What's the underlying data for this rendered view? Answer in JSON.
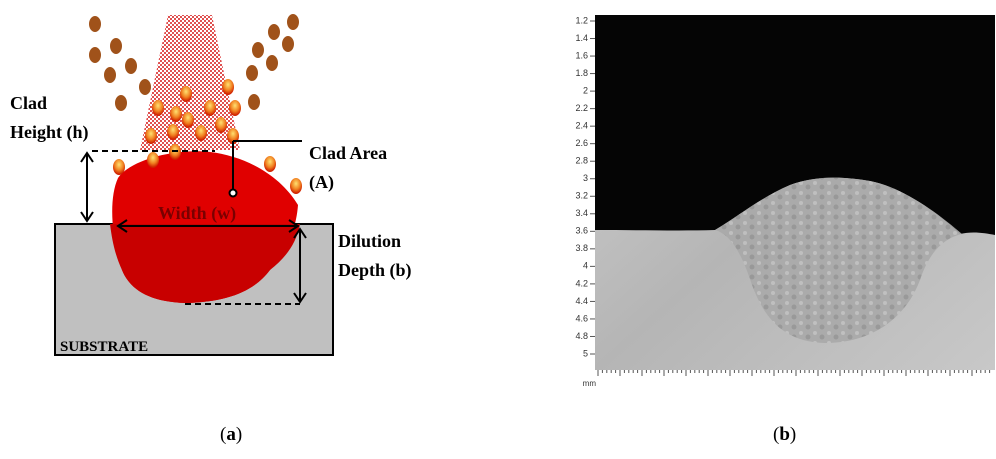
{
  "panel_a": {
    "clad_height": [
      "Clad",
      "Height (h)"
    ],
    "clad_area": [
      "Clad Area",
      "(A)"
    ],
    "width": "Width (w)",
    "dilution_depth": [
      "Dilution",
      "Depth (b)"
    ],
    "substrate": "SUBSTRATE",
    "caption": [
      "(",
      "a",
      ")"
    ]
  },
  "panel_b": {
    "yticks": [
      1.2,
      1.4,
      1.6,
      1.8,
      2,
      2.2,
      2.4,
      2.6,
      2.8,
      3,
      3.2,
      3.4,
      3.6,
      3.8,
      4,
      4.2,
      4.4,
      4.6,
      4.8,
      5
    ],
    "ylim": [
      1.2,
      5
    ],
    "unit": "mm",
    "caption": [
      "(",
      "b",
      ")"
    ]
  }
}
